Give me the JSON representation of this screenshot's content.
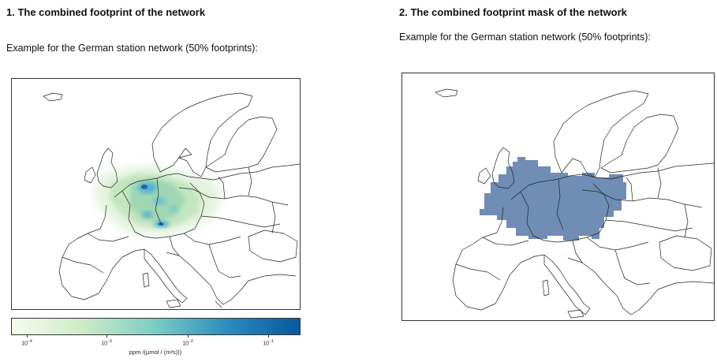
{
  "left_panel": {
    "heading": "1. The combined footprint of the network",
    "caption": "Example for the German station network (50% footprints):",
    "colorbar": {
      "ticks": [
        {
          "base": "10",
          "exp": "−4"
        },
        {
          "base": "10",
          "exp": "−3"
        },
        {
          "base": "10",
          "exp": "−2"
        },
        {
          "base": "10",
          "exp": "−1"
        }
      ],
      "label": "ppm /(µmol / (m²s)))",
      "colors": [
        "#f7fcf0",
        "#ccebc5",
        "#7bccc4",
        "#2b8cbe",
        "#08589e"
      ]
    }
  },
  "right_panel": {
    "heading": "2. The combined footprint mask of the network",
    "caption": "Example for the German station network (50% footprints):",
    "mask_color": "#6f8db5"
  }
}
